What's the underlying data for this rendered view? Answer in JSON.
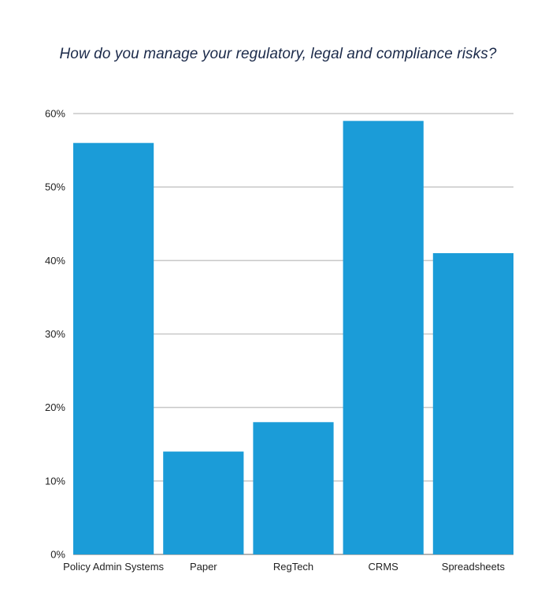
{
  "chart_data": {
    "type": "bar",
    "title": "How do you manage your regulatory, legal and compliance risks?",
    "xlabel": "",
    "ylabel": "",
    "categories": [
      "Policy Admin Systems",
      "Paper",
      "RegTech",
      "CRMS",
      "Spreadsheets"
    ],
    "values": [
      56,
      14,
      18,
      59,
      41
    ],
    "ylim": [
      0,
      60
    ],
    "yticks": [
      0,
      10,
      20,
      30,
      40,
      50,
      60
    ],
    "ytick_labels": [
      "0%",
      "10%",
      "20%",
      "30%",
      "40%",
      "50%",
      "60%"
    ],
    "grid": true,
    "legend": "none",
    "bar_color": "#1b9cd8",
    "grid_color": "#c8c8c8"
  }
}
